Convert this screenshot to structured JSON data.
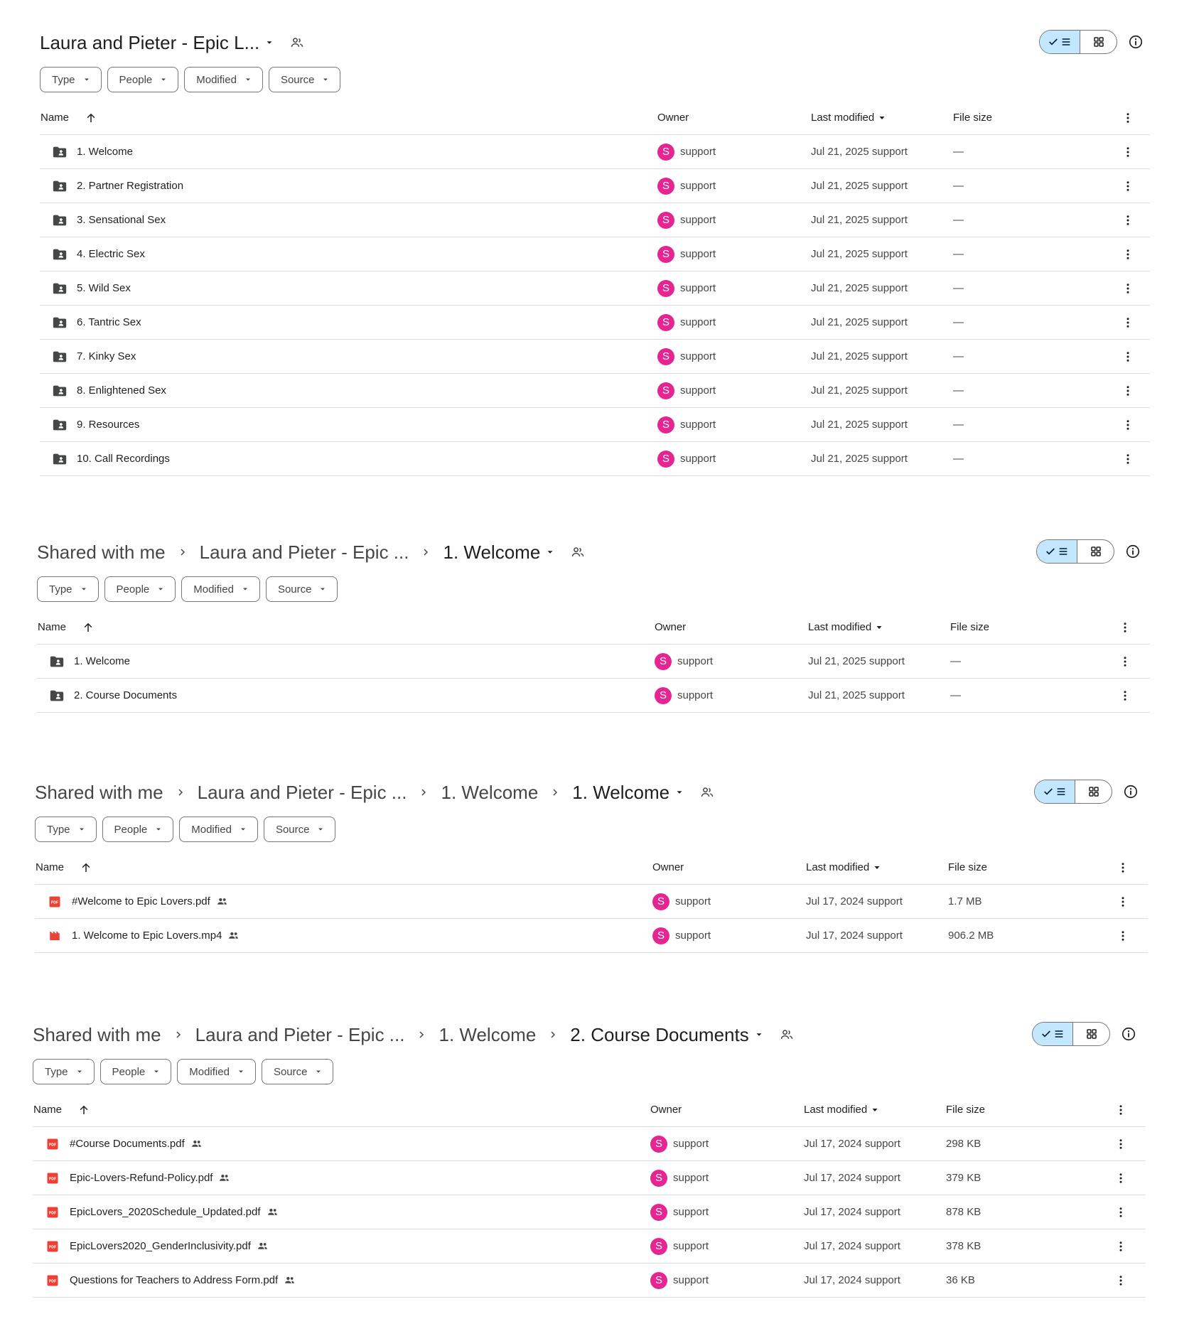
{
  "filters": [
    "Type",
    "People",
    "Modified",
    "Source"
  ],
  "columns": {
    "name": "Name",
    "owner": "Owner",
    "modified": "Last modified",
    "size": "File size"
  },
  "colors": {
    "accent": "#c2e7ff",
    "avatar": "#e52592",
    "pdf": "#ea4335",
    "video": "#ea4335",
    "folder": "#444746"
  },
  "panels": [
    {
      "breadcrumb": [
        "Laura and Pieter - Epic L..."
      ],
      "rows": [
        {
          "icon": "shared-folder-icon",
          "name": "1. Welcome",
          "owner": "support",
          "avatar": "S",
          "modified": "Jul 21, 2025 support",
          "size": "—",
          "shared": false
        },
        {
          "icon": "shared-folder-icon",
          "name": "2. Partner Registration",
          "owner": "support",
          "avatar": "S",
          "modified": "Jul 21, 2025 support",
          "size": "—",
          "shared": false
        },
        {
          "icon": "shared-folder-icon",
          "name": "3. Sensational Sex",
          "owner": "support",
          "avatar": "S",
          "modified": "Jul 21, 2025 support",
          "size": "—",
          "shared": false
        },
        {
          "icon": "shared-folder-icon",
          "name": "4. Electric Sex",
          "owner": "support",
          "avatar": "S",
          "modified": "Jul 21, 2025 support",
          "size": "—",
          "shared": false
        },
        {
          "icon": "shared-folder-icon",
          "name": "5. Wild Sex",
          "owner": "support",
          "avatar": "S",
          "modified": "Jul 21, 2025 support",
          "size": "—",
          "shared": false
        },
        {
          "icon": "shared-folder-icon",
          "name": "6. Tantric Sex",
          "owner": "support",
          "avatar": "S",
          "modified": "Jul 21, 2025 support",
          "size": "—",
          "shared": false
        },
        {
          "icon": "shared-folder-icon",
          "name": "7. Kinky Sex",
          "owner": "support",
          "avatar": "S",
          "modified": "Jul 21, 2025 support",
          "size": "—",
          "shared": false
        },
        {
          "icon": "shared-folder-icon",
          "name": "8. Enlightened Sex",
          "owner": "support",
          "avatar": "S",
          "modified": "Jul 21, 2025 support",
          "size": "—",
          "shared": false
        },
        {
          "icon": "shared-folder-icon",
          "name": "9. Resources",
          "owner": "support",
          "avatar": "S",
          "modified": "Jul 21, 2025 support",
          "size": "—",
          "shared": false
        },
        {
          "icon": "shared-folder-icon",
          "name": "10. Call Recordings",
          "owner": "support",
          "avatar": "S",
          "modified": "Jul 21, 2025 support",
          "size": "—",
          "shared": false
        }
      ]
    },
    {
      "breadcrumb": [
        "Shared with me",
        "Laura and Pieter - Epic ...",
        "1. Welcome"
      ],
      "rows": [
        {
          "icon": "shared-folder-icon",
          "name": "1. Welcome",
          "owner": "support",
          "avatar": "S",
          "modified": "Jul 21, 2025 support",
          "size": "—",
          "shared": false
        },
        {
          "icon": "shared-folder-icon",
          "name": "2. Course Documents",
          "owner": "support",
          "avatar": "S",
          "modified": "Jul 21, 2025 support",
          "size": "—",
          "shared": false
        }
      ]
    },
    {
      "breadcrumb": [
        "Shared with me",
        "Laura and Pieter - Epic ...",
        "1. Welcome",
        "1. Welcome"
      ],
      "rows": [
        {
          "icon": "pdf-icon",
          "name": "#Welcome to Epic Lovers.pdf",
          "owner": "support",
          "avatar": "S",
          "modified": "Jul 17, 2024 support",
          "size": "1.7 MB",
          "shared": true
        },
        {
          "icon": "video-icon",
          "name": "1. Welcome to Epic Lovers.mp4",
          "owner": "support",
          "avatar": "S",
          "modified": "Jul 17, 2024 support",
          "size": "906.2 MB",
          "shared": true
        }
      ]
    },
    {
      "breadcrumb": [
        "Shared with me",
        "Laura and Pieter - Epic ...",
        "1. Welcome",
        "2. Course Documents"
      ],
      "rows": [
        {
          "icon": "pdf-icon",
          "name": "#Course Documents.pdf",
          "owner": "support",
          "avatar": "S",
          "modified": "Jul 17, 2024 support",
          "size": "298 KB",
          "shared": true
        },
        {
          "icon": "pdf-icon",
          "name": "Epic-Lovers-Refund-Policy.pdf",
          "owner": "support",
          "avatar": "S",
          "modified": "Jul 17, 2024 support",
          "size": "379 KB",
          "shared": true
        },
        {
          "icon": "pdf-icon",
          "name": "EpicLovers_2020Schedule_Updated.pdf",
          "owner": "support",
          "avatar": "S",
          "modified": "Jul 17, 2024 support",
          "size": "878 KB",
          "shared": true
        },
        {
          "icon": "pdf-icon",
          "name": "EpicLovers2020_GenderInclusivity.pdf",
          "owner": "support",
          "avatar": "S",
          "modified": "Jul 17, 2024 support",
          "size": "378 KB",
          "shared": true
        },
        {
          "icon": "pdf-icon",
          "name": "Questions for Teachers to Address Form.pdf",
          "owner": "support",
          "avatar": "S",
          "modified": "Jul 17, 2024 support",
          "size": "36 KB",
          "shared": true
        }
      ]
    }
  ]
}
